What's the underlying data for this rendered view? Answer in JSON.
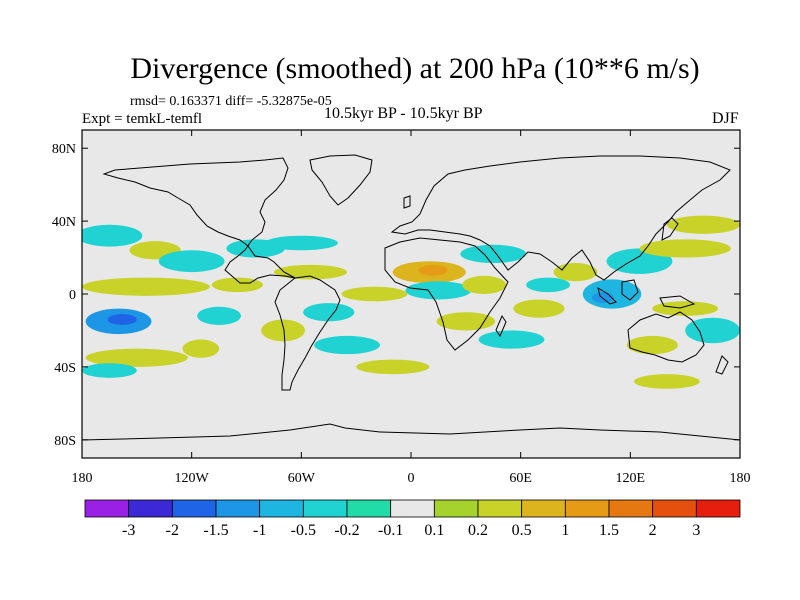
{
  "title": "Divergence (smoothed) at 200 hPa (10**6 m/s)",
  "stats": "rmsd= 0.163371 diff= -5.32875e-05",
  "expt": "Expt = temkL-temfl",
  "subtitle": "10.5kyr BP - 10.5kyr BP",
  "season": "DJF",
  "map": {
    "projection": "cylindrical equidistant",
    "lon_range": [
      -180,
      180
    ],
    "lat_range": [
      -90,
      90
    ],
    "lat_ticks": [
      {
        "value": 80,
        "label": "80N"
      },
      {
        "value": 40,
        "label": "40N"
      },
      {
        "value": 0,
        "label": "0"
      },
      {
        "value": -40,
        "label": "40S"
      },
      {
        "value": -80,
        "label": "80S"
      }
    ],
    "lon_ticks": [
      {
        "value": -180,
        "label": "180"
      },
      {
        "value": -120,
        "label": "120W"
      },
      {
        "value": -60,
        "label": "60W"
      },
      {
        "value": 0,
        "label": "0"
      },
      {
        "value": 60,
        "label": "60E"
      },
      {
        "value": 120,
        "label": "120E"
      },
      {
        "value": 180,
        "label": "180"
      }
    ],
    "background_color": "#e8e8e8"
  },
  "colorbar": {
    "colors": [
      "#9b20e6",
      "#3d28d6",
      "#1f64e6",
      "#1e96e6",
      "#1eb6e0",
      "#20d2d2",
      "#22dca8",
      "#e8e8e8",
      "#a6d22e",
      "#c8d228",
      "#dcb41e",
      "#e69b16",
      "#e67812",
      "#e6500e",
      "#e61e0e"
    ],
    "labels": [
      "-3",
      "-2",
      "-1.5",
      "-1",
      "-0.5",
      "-0.2",
      "-0.1",
      "0.1",
      "0.2",
      "0.5",
      "1",
      "1.5",
      "2",
      "3"
    ]
  },
  "chart_data": {
    "type": "heatmap",
    "variable": "Divergence (smoothed) at 200 hPa",
    "units": "10**6 m/s",
    "contour_levels": [
      -3,
      -2,
      -1.5,
      -1,
      -0.5,
      -0.2,
      -0.1,
      0.1,
      0.2,
      0.5,
      1,
      1.5,
      2,
      3
    ],
    "anomaly_blobs": [
      {
        "lon": -160,
        "lat": -15,
        "rx": 18,
        "ry": 7,
        "value": -1
      },
      {
        "lon": -158,
        "lat": -14,
        "rx": 8,
        "ry": 3,
        "value": -1.5
      },
      {
        "lon": -145,
        "lat": 4,
        "rx": 35,
        "ry": 5,
        "value": 0.3
      },
      {
        "lon": -165,
        "lat": 32,
        "rx": 18,
        "ry": 6,
        "value": -0.3
      },
      {
        "lon": -140,
        "lat": 24,
        "rx": 14,
        "ry": 5,
        "value": 0.3
      },
      {
        "lon": -120,
        "lat": 18,
        "rx": 18,
        "ry": 6,
        "value": -0.3
      },
      {
        "lon": -150,
        "lat": -35,
        "rx": 28,
        "ry": 5,
        "value": 0.3
      },
      {
        "lon": -165,
        "lat": -42,
        "rx": 15,
        "ry": 4,
        "value": -0.3
      },
      {
        "lon": -115,
        "lat": -30,
        "rx": 10,
        "ry": 5,
        "value": 0.3
      },
      {
        "lon": -105,
        "lat": -12,
        "rx": 12,
        "ry": 5,
        "value": -0.3
      },
      {
        "lon": -95,
        "lat": 5,
        "rx": 14,
        "ry": 4,
        "value": 0.3
      },
      {
        "lon": -85,
        "lat": 25,
        "rx": 16,
        "ry": 5,
        "value": -0.3
      },
      {
        "lon": -60,
        "lat": 28,
        "rx": 20,
        "ry": 4,
        "value": -0.3
      },
      {
        "lon": -55,
        "lat": 12,
        "rx": 20,
        "ry": 4,
        "value": 0.3
      },
      {
        "lon": -70,
        "lat": -20,
        "rx": 12,
        "ry": 6,
        "value": 0.3
      },
      {
        "lon": -45,
        "lat": -10,
        "rx": 14,
        "ry": 5,
        "value": -0.3
      },
      {
        "lon": -20,
        "lat": 0,
        "rx": 18,
        "ry": 4,
        "value": 0.3
      },
      {
        "lon": -35,
        "lat": -28,
        "rx": 18,
        "ry": 5,
        "value": -0.3
      },
      {
        "lon": -10,
        "lat": -40,
        "rx": 20,
        "ry": 4,
        "value": 0.3
      },
      {
        "lon": 10,
        "lat": 12,
        "rx": 20,
        "ry": 6,
        "value": 0.7
      },
      {
        "lon": 12,
        "lat": 13,
        "rx": 8,
        "ry": 3,
        "value": 1.2
      },
      {
        "lon": 15,
        "lat": 2,
        "rx": 18,
        "ry": 5,
        "value": -0.3
      },
      {
        "lon": 30,
        "lat": -15,
        "rx": 16,
        "ry": 5,
        "value": 0.3
      },
      {
        "lon": 40,
        "lat": 5,
        "rx": 12,
        "ry": 5,
        "value": 0.3
      },
      {
        "lon": 45,
        "lat": 22,
        "rx": 18,
        "ry": 5,
        "value": -0.3
      },
      {
        "lon": 55,
        "lat": -25,
        "rx": 18,
        "ry": 5,
        "value": -0.3
      },
      {
        "lon": 70,
        "lat": -8,
        "rx": 14,
        "ry": 5,
        "value": 0.3
      },
      {
        "lon": 75,
        "lat": 5,
        "rx": 12,
        "ry": 4,
        "value": -0.3
      },
      {
        "lon": 90,
        "lat": 12,
        "rx": 12,
        "ry": 5,
        "value": 0.5
      },
      {
        "lon": 110,
        "lat": 0,
        "rx": 16,
        "ry": 8,
        "value": -0.7
      },
      {
        "lon": 105,
        "lat": -2,
        "rx": 6,
        "ry": 3,
        "value": -1.2
      },
      {
        "lon": 125,
        "lat": 18,
        "rx": 18,
        "ry": 7,
        "value": -0.3
      },
      {
        "lon": 132,
        "lat": -28,
        "rx": 14,
        "ry": 5,
        "value": 0.5
      },
      {
        "lon": 150,
        "lat": 25,
        "rx": 25,
        "ry": 5,
        "value": 0.3
      },
      {
        "lon": 160,
        "lat": 38,
        "rx": 20,
        "ry": 5,
        "value": 0.3
      },
      {
        "lon": 165,
        "lat": -20,
        "rx": 15,
        "ry": 7,
        "value": -0.3
      },
      {
        "lon": 150,
        "lat": -8,
        "rx": 18,
        "ry": 4,
        "value": 0.3
      },
      {
        "lon": 140,
        "lat": -48,
        "rx": 18,
        "ry": 4,
        "value": 0.3
      }
    ]
  }
}
